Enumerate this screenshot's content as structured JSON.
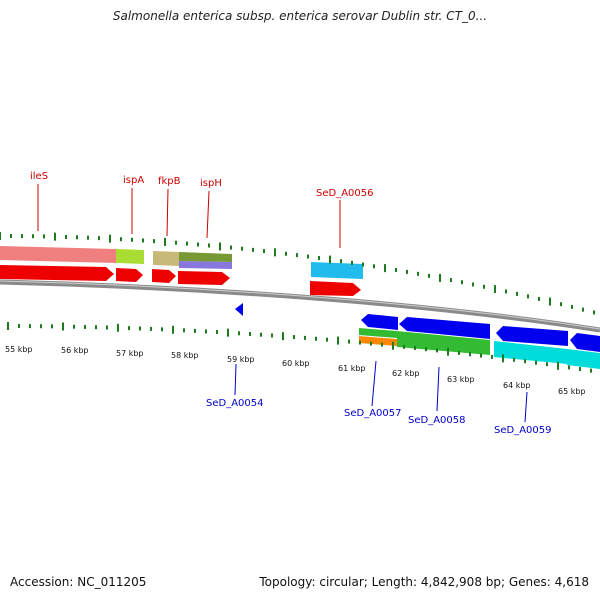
{
  "title": "Salmonella enterica subsp. enterica serovar Dublin str. CT_0...",
  "footer": {
    "accession": "Accession: NC_011205",
    "summary": "Topology: circular; Length: 4,842,908 bp; Genes: 4,618"
  },
  "scale": {
    "unit": "kbp",
    "labels": [
      "55 kbp",
      "56 kbp",
      "57 kbp",
      "58 kbp",
      "59 kbp",
      "60 kbp",
      "61 kbp",
      "62 kbp",
      "63 kbp",
      "64 kbp",
      "65 kbp"
    ]
  },
  "colors": {
    "forward_label": "#cc0000",
    "reverse_label": "#0000cc",
    "backbone": "#8a8a8a",
    "tick": "#1e7a1e",
    "red_gene": "#ee0000",
    "blue_gene": "#0000ee",
    "cyan_gene": "#00dcdc",
    "green_gene": "#33bb33",
    "orange_gene": "#ff8800",
    "pink_band": "#f08080",
    "lime_band": "#aadd33",
    "khaki_band": "#c8b878",
    "olive_band": "#779933",
    "lavender_band": "#8877dd",
    "sky_band": "#22bbee"
  },
  "forward_genes": [
    "ileS",
    "ispA",
    "fkpB",
    "ispH",
    "SeD_A0056"
  ],
  "reverse_genes": [
    "SeD_A0054",
    "SeD_A0057",
    "SeD_A0058",
    "SeD_A0059"
  ]
}
